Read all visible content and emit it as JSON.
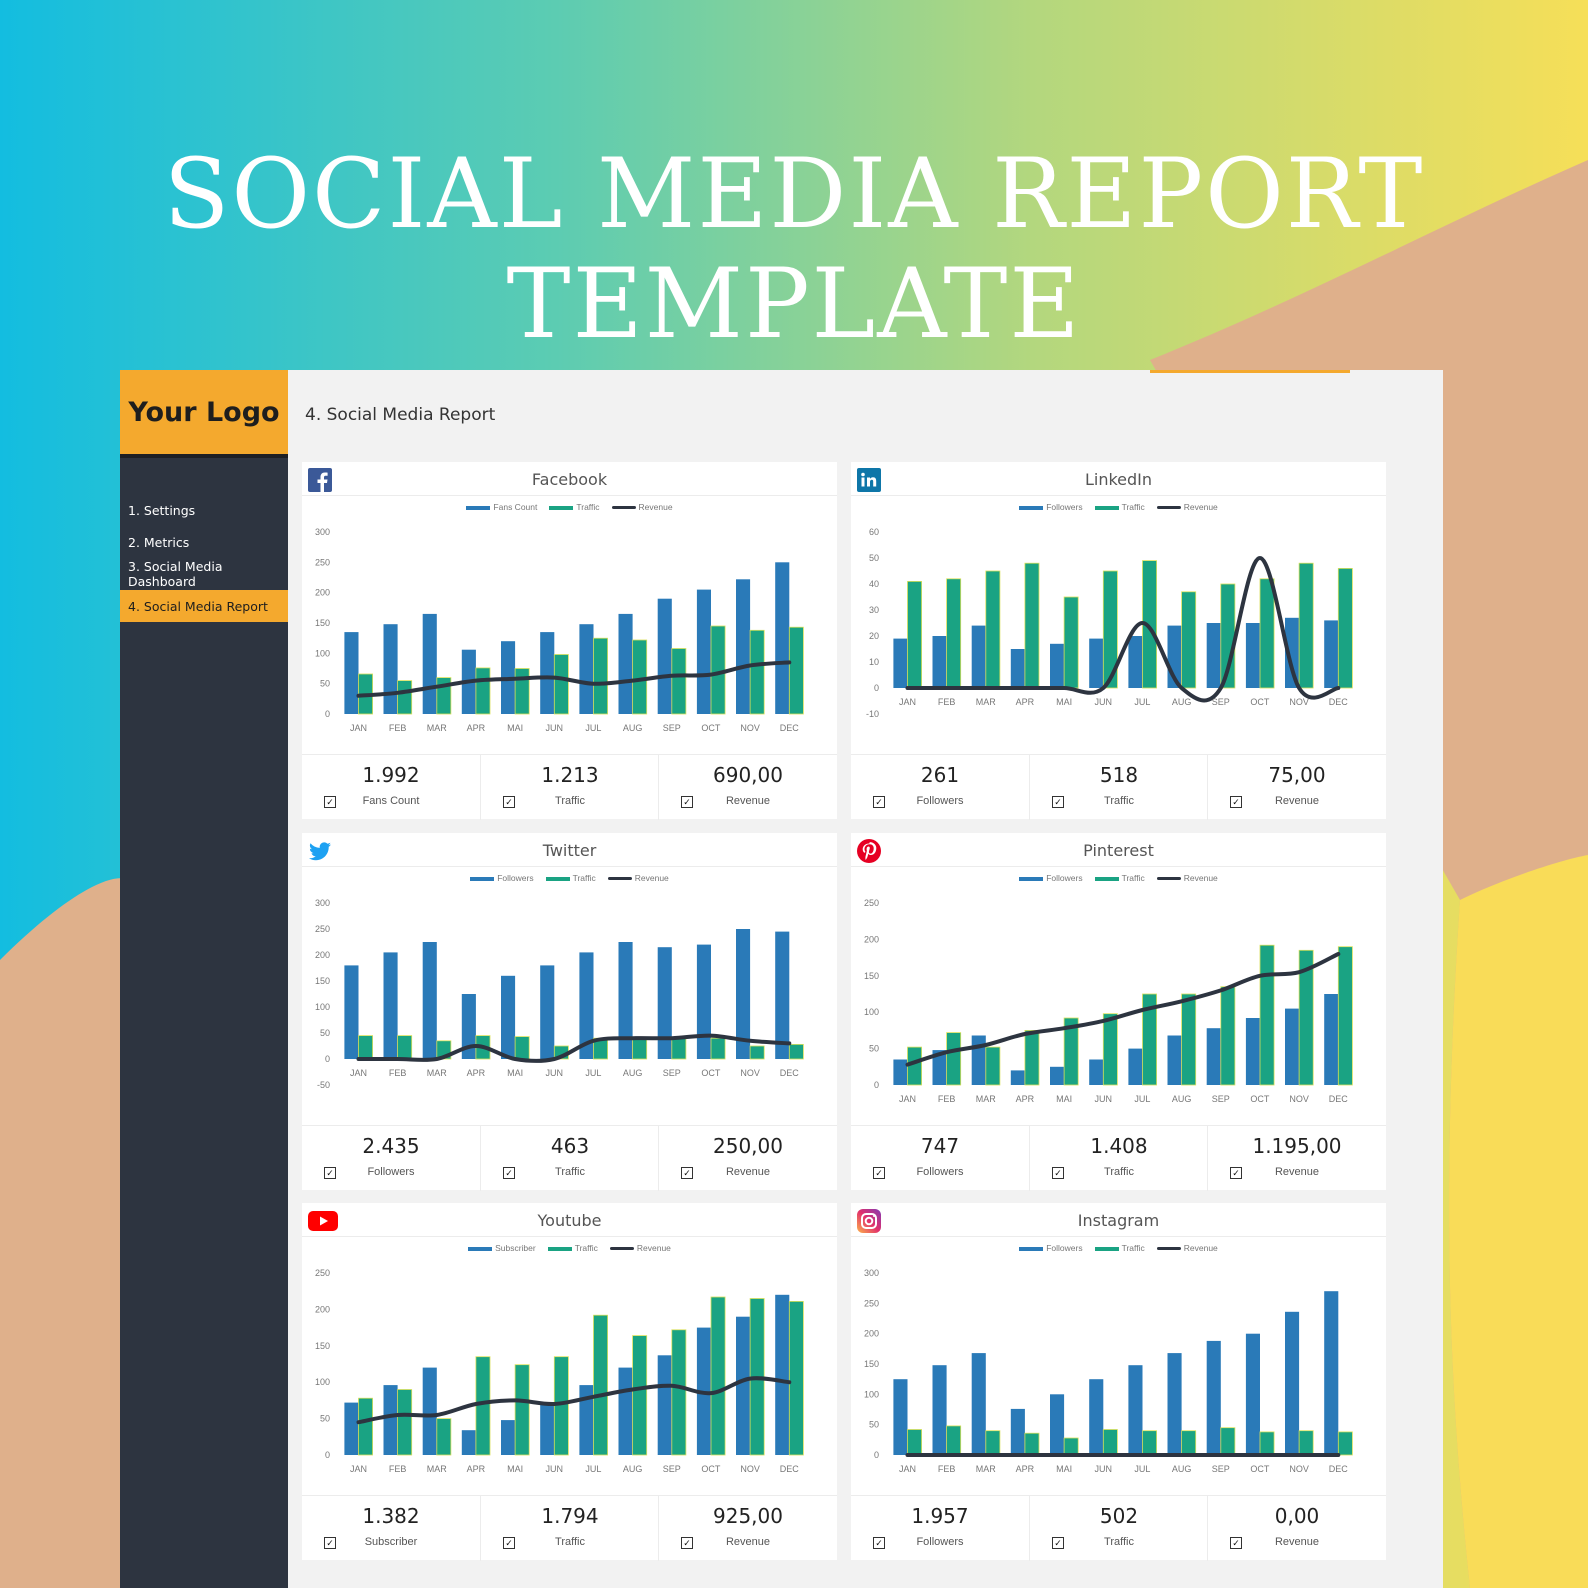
{
  "hero": {
    "line1": "SOCIAL MEDIA REPORT",
    "line2": "TEMPLATE"
  },
  "colors": {
    "bar1": "#2a7ab8",
    "bar2": "#1aa383",
    "line": "#2d3440",
    "accent": "#f4a92e",
    "sidebar": "#2d3440"
  },
  "app": {
    "logo": "Your Logo",
    "page_title": "4. Social Media Report",
    "nav": [
      {
        "label": "1. Settings"
      },
      {
        "label": "2. Metrics"
      },
      {
        "label": "3. Social Media Dashboard"
      },
      {
        "label": "4. Social Media Report"
      }
    ]
  },
  "cards": [
    {
      "title": "Facebook",
      "icon": "facebook-icon",
      "legend": [
        "Fans Count",
        "Traffic",
        "Revenue"
      ],
      "metrics": [
        {
          "value": "1.992",
          "label": "Fans Count"
        },
        {
          "value": "1.213",
          "label": "Traffic"
        },
        {
          "value": "690,00",
          "label": "Revenue"
        }
      ]
    },
    {
      "title": "LinkedIn",
      "icon": "linkedin-icon",
      "legend": [
        "Followers",
        "Traffic",
        "Revenue"
      ],
      "metrics": [
        {
          "value": "261",
          "label": "Followers"
        },
        {
          "value": "518",
          "label": "Traffic"
        },
        {
          "value": "75,00",
          "label": "Revenue"
        }
      ]
    },
    {
      "title": "Twitter",
      "icon": "twitter-icon",
      "legend": [
        "Followers",
        "Traffic",
        "Revenue"
      ],
      "metrics": [
        {
          "value": "2.435",
          "label": "Followers"
        },
        {
          "value": "463",
          "label": "Traffic"
        },
        {
          "value": "250,00",
          "label": "Revenue"
        }
      ]
    },
    {
      "title": "Pinterest",
      "icon": "pinterest-icon",
      "legend": [
        "Followers",
        "Traffic",
        "Revenue"
      ],
      "metrics": [
        {
          "value": "747",
          "label": "Followers"
        },
        {
          "value": "1.408",
          "label": "Traffic"
        },
        {
          "value": "1.195,00",
          "label": "Revenue"
        }
      ]
    },
    {
      "title": "Youtube",
      "icon": "youtube-icon",
      "legend": [
        "Subscriber",
        "Traffic",
        "Revenue"
      ],
      "metrics": [
        {
          "value": "1.382",
          "label": "Subscriber"
        },
        {
          "value": "1.794",
          "label": "Traffic"
        },
        {
          "value": "925,00",
          "label": "Revenue"
        }
      ]
    },
    {
      "title": "Instagram",
      "icon": "instagram-icon",
      "legend": [
        "Followers",
        "Traffic",
        "Revenue"
      ],
      "metrics": [
        {
          "value": "1.957",
          "label": "Followers"
        },
        {
          "value": "502",
          "label": "Traffic"
        },
        {
          "value": "0,00",
          "label": "Revenue"
        }
      ]
    }
  ],
  "chart_data": [
    {
      "type": "bar",
      "title": "Facebook",
      "categories": [
        "JAN",
        "FEB",
        "MAR",
        "APR",
        "MAI",
        "JUN",
        "JUL",
        "AUG",
        "SEP",
        "OCT",
        "NOV",
        "DEC"
      ],
      "ylim": [
        0,
        300
      ],
      "yticks": [
        0,
        50,
        100,
        150,
        200,
        250,
        300
      ],
      "series": [
        {
          "name": "Fans Count",
          "kind": "bar",
          "values": [
            135,
            148,
            165,
            106,
            120,
            135,
            148,
            165,
            190,
            205,
            222,
            250
          ]
        },
        {
          "name": "Traffic",
          "kind": "bar",
          "values": [
            66,
            55,
            60,
            76,
            75,
            98,
            125,
            122,
            108,
            145,
            138,
            143
          ]
        },
        {
          "name": "Revenue",
          "kind": "line",
          "values": [
            30,
            35,
            45,
            55,
            58,
            60,
            50,
            55,
            63,
            65,
            80,
            85
          ]
        }
      ]
    },
    {
      "type": "bar",
      "title": "LinkedIn",
      "categories": [
        "JAN",
        "FEB",
        "MAR",
        "APR",
        "MAI",
        "JUN",
        "JUL",
        "AUG",
        "SEP",
        "OCT",
        "NOV",
        "DEC"
      ],
      "ylim": [
        -10,
        60
      ],
      "yticks": [
        -10,
        0,
        10,
        20,
        30,
        40,
        50,
        60
      ],
      "series": [
        {
          "name": "Followers",
          "kind": "bar",
          "values": [
            19,
            20,
            24,
            15,
            17,
            19,
            20,
            24,
            25,
            25,
            27,
            26
          ]
        },
        {
          "name": "Traffic",
          "kind": "bar",
          "values": [
            41,
            42,
            45,
            48,
            35,
            45,
            49,
            37,
            40,
            42,
            48,
            46
          ]
        },
        {
          "name": "Revenue",
          "kind": "line",
          "values": [
            0,
            0,
            0,
            0,
            0,
            0,
            25,
            0,
            0,
            50,
            0,
            0
          ]
        }
      ]
    },
    {
      "type": "bar",
      "title": "Twitter",
      "categories": [
        "JAN",
        "FEB",
        "MAR",
        "APR",
        "MAI",
        "JUN",
        "JUL",
        "AUG",
        "SEP",
        "OCT",
        "NOV",
        "DEC"
      ],
      "ylim": [
        -50,
        300
      ],
      "yticks": [
        -50,
        0,
        50,
        100,
        150,
        200,
        250,
        300
      ],
      "series": [
        {
          "name": "Followers",
          "kind": "bar",
          "values": [
            180,
            205,
            225,
            125,
            160,
            180,
            205,
            225,
            215,
            220,
            250,
            245
          ]
        },
        {
          "name": "Traffic",
          "kind": "bar",
          "values": [
            45,
            45,
            35,
            45,
            43,
            25,
            40,
            40,
            40,
            40,
            25,
            28
          ]
        },
        {
          "name": "Revenue",
          "kind": "line",
          "values": [
            0,
            0,
            0,
            25,
            0,
            0,
            35,
            40,
            40,
            45,
            35,
            30
          ]
        }
      ]
    },
    {
      "type": "bar",
      "title": "Pinterest",
      "categories": [
        "JAN",
        "FEB",
        "MAR",
        "APR",
        "MAI",
        "JUN",
        "JUL",
        "AUG",
        "SEP",
        "OCT",
        "NOV",
        "DEC"
      ],
      "ylim": [
        0,
        250
      ],
      "yticks": [
        0,
        50,
        100,
        150,
        200,
        250
      ],
      "series": [
        {
          "name": "Followers",
          "kind": "bar",
          "values": [
            35,
            48,
            68,
            20,
            25,
            35,
            50,
            68,
            78,
            92,
            105,
            125
          ]
        },
        {
          "name": "Traffic",
          "kind": "bar",
          "values": [
            52,
            72,
            52,
            75,
            92,
            98,
            125,
            125,
            135,
            192,
            185,
            190
          ]
        },
        {
          "name": "Revenue",
          "kind": "line",
          "values": [
            28,
            45,
            55,
            70,
            78,
            88,
            103,
            115,
            130,
            150,
            155,
            180
          ]
        }
      ]
    },
    {
      "type": "bar",
      "title": "Youtube",
      "categories": [
        "JAN",
        "FEB",
        "MAR",
        "APR",
        "MAI",
        "JUN",
        "JUL",
        "AUG",
        "SEP",
        "OCT",
        "NOV",
        "DEC"
      ],
      "ylim": [
        0,
        250
      ],
      "yticks": [
        0,
        50,
        100,
        150,
        200,
        250
      ],
      "series": [
        {
          "name": "Subscriber",
          "kind": "bar",
          "values": [
            72,
            96,
            120,
            34,
            48,
            72,
            96,
            120,
            137,
            175,
            190,
            220
          ]
        },
        {
          "name": "Traffic",
          "kind": "bar",
          "values": [
            78,
            90,
            50,
            135,
            124,
            135,
            192,
            164,
            172,
            217,
            215,
            211
          ]
        },
        {
          "name": "Revenue",
          "kind": "line",
          "values": [
            45,
            55,
            55,
            70,
            75,
            70,
            80,
            90,
            95,
            85,
            105,
            100
          ]
        }
      ]
    },
    {
      "type": "bar",
      "title": "Instagram",
      "categories": [
        "JAN",
        "FEB",
        "MAR",
        "APR",
        "MAI",
        "JUN",
        "JUL",
        "AUG",
        "SEP",
        "OCT",
        "NOV",
        "DEC"
      ],
      "ylim": [
        0,
        300
      ],
      "yticks": [
        0,
        50,
        100,
        150,
        200,
        250,
        300
      ],
      "series": [
        {
          "name": "Followers",
          "kind": "bar",
          "values": [
            125,
            148,
            168,
            76,
            100,
            125,
            148,
            168,
            188,
            200,
            236,
            270
          ]
        },
        {
          "name": "Traffic",
          "kind": "bar",
          "values": [
            42,
            48,
            40,
            36,
            28,
            42,
            40,
            40,
            45,
            38,
            40,
            38
          ]
        },
        {
          "name": "Revenue",
          "kind": "line",
          "values": [
            0,
            0,
            0,
            0,
            0,
            0,
            0,
            0,
            0,
            0,
            0,
            0
          ]
        }
      ]
    }
  ]
}
